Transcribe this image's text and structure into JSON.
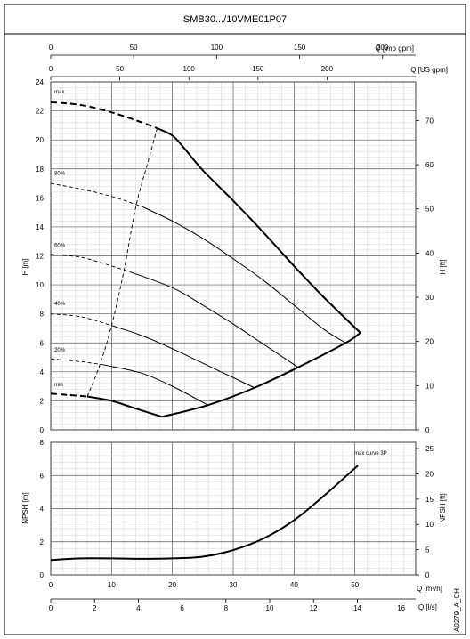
{
  "chart_data": {
    "type": "line",
    "title": "SMB30.../10VME01P07",
    "side_code": "A0279_A_CH",
    "top_axes": {
      "imp": {
        "label": "Q [imp gpm]",
        "ticks": [
          "0",
          "50",
          "100",
          "150",
          "200"
        ],
        "values": [
          0,
          50,
          100,
          150,
          200
        ]
      },
      "us": {
        "label": "Q [US gpm]",
        "ticks": [
          "0",
          "50",
          "100",
          "150",
          "200"
        ],
        "values": [
          0,
          50,
          100,
          150,
          200
        ]
      }
    },
    "bottom_axes": {
      "m3h": {
        "label": "Q [m³/h]",
        "ticks": [
          "0",
          "10",
          "20",
          "30",
          "40",
          "50"
        ],
        "values": [
          0,
          10,
          20,
          30,
          40,
          50
        ]
      },
      "ls": {
        "label": "Q [l/s]",
        "ticks": [
          "0",
          "2",
          "4",
          "6",
          "8",
          "10",
          "12",
          "14",
          "16"
        ],
        "values": [
          0,
          2,
          4,
          6,
          8,
          10,
          12,
          14,
          16
        ]
      }
    },
    "head_plot": {
      "xlim": [
        0,
        60
      ],
      "ylim": [
        0,
        24
      ],
      "ylabel": "H [m]",
      "ylabel_right": "H [ft]",
      "yticks": [
        "0",
        "2",
        "4",
        "6",
        "8",
        "10",
        "12",
        "14",
        "16",
        "18",
        "20",
        "22",
        "24"
      ],
      "yticks_right": [
        "0",
        "10",
        "20",
        "30",
        "40",
        "50",
        "60",
        "70"
      ],
      "grid": true,
      "curves": [
        {
          "name": "max",
          "dashed": {
            "x": [
              0,
              5,
              10,
              15,
              17.5
            ],
            "y": [
              22.6,
              22.4,
              21.9,
              21.2,
              20.8
            ]
          },
          "solid": {
            "x": [
              17.5,
              20,
              22,
              25,
              30,
              35,
              40,
              45,
              50.9
            ],
            "y": [
              20.8,
              20.3,
              19.4,
              17.9,
              15.8,
              13.6,
              11.3,
              9.1,
              6.7
            ]
          }
        },
        {
          "name": "80%",
          "dashed": {
            "x": [
              0,
              5,
              10,
              15
            ],
            "y": [
              17.0,
              16.6,
              16.1,
              15.4
            ]
          },
          "solid": {
            "x": [
              15,
              20,
              25,
              30,
              35,
              40,
              45,
              48.5
            ],
            "y": [
              15.4,
              14.4,
              13.2,
              11.8,
              10.3,
              8.6,
              6.9,
              6.0
            ]
          }
        },
        {
          "name": "60%",
          "dashed": {
            "x": [
              0,
              5,
              10,
              13
            ],
            "y": [
              12.1,
              11.9,
              11.3,
              10.9
            ]
          },
          "solid": {
            "x": [
              13,
              20,
              25,
              30,
              35,
              40,
              40.6
            ],
            "y": [
              10.9,
              9.8,
              8.6,
              7.3,
              5.9,
              4.5,
              4.3
            ]
          }
        },
        {
          "name": "40%",
          "dashed": {
            "x": [
              0,
              5,
              10
            ],
            "y": [
              8.0,
              7.8,
              7.2
            ]
          },
          "solid": {
            "x": [
              10,
              15,
              20,
              25,
              30,
              33.5
            ],
            "y": [
              7.2,
              6.5,
              5.6,
              4.6,
              3.6,
              2.9
            ]
          }
        },
        {
          "name": "20%",
          "dashed": {
            "x": [
              0,
              5,
              8.5
            ],
            "y": [
              4.9,
              4.7,
              4.5
            ]
          },
          "solid": {
            "x": [
              8.5,
              15,
              20,
              25,
              25.8
            ],
            "y": [
              4.5,
              3.9,
              3.0,
              1.9,
              1.7
            ]
          }
        },
        {
          "name": "min",
          "dashed": {
            "x": [
              0,
              3,
              6
            ],
            "y": [
              2.5,
              2.4,
              2.3
            ]
          },
          "solid": {
            "x": [
              6,
              10,
              13,
              16,
              18.3
            ],
            "y": [
              2.3,
              2.0,
              1.6,
              1.2,
              0.9
            ]
          }
        }
      ],
      "envelope": {
        "x": [
          18.3,
          25.8,
          33.5,
          40.6,
          48.5,
          50.9
        ],
        "y": [
          0.9,
          1.7,
          2.9,
          4.3,
          6.0,
          6.7
        ]
      },
      "dashed_system_line": {
        "x": [
          6,
          8,
          10,
          12,
          14,
          16,
          17.5
        ],
        "y": [
          2.3,
          4.4,
          7.2,
          10.9,
          15.4,
          18.5,
          20.8
        ]
      }
    },
    "npsh_plot": {
      "xlim": [
        0,
        60
      ],
      "ylim": [
        0,
        8
      ],
      "ylabel": "NPSH [m]",
      "ylabel_right": "NPSH [ft]",
      "yticks": [
        "0",
        "2",
        "4",
        "6",
        "8"
      ],
      "yticks_right": [
        "0",
        "5",
        "10",
        "15",
        "20",
        "25"
      ],
      "grid": true,
      "annotation": "max curve 3P",
      "series": [
        {
          "name": "max curve 3P",
          "x": [
            0,
            5,
            10,
            15,
            20,
            25,
            30,
            35,
            40,
            45,
            50.5
          ],
          "y": [
            0.9,
            1.0,
            1.0,
            0.97,
            1.0,
            1.1,
            1.5,
            2.2,
            3.3,
            4.8,
            6.6
          ]
        }
      ]
    }
  }
}
